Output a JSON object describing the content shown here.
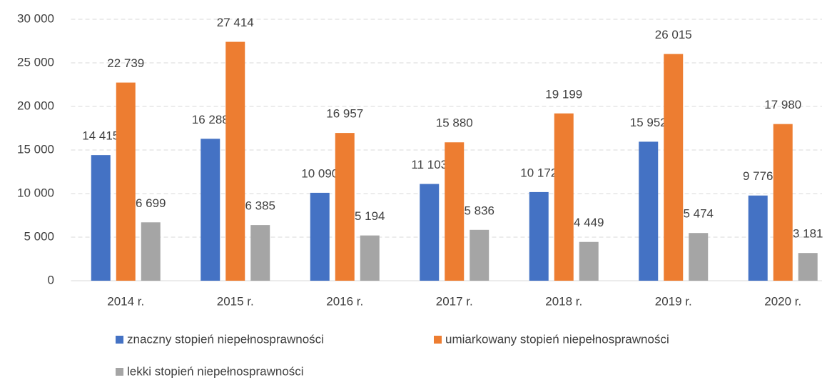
{
  "chart_data": {
    "type": "bar",
    "categories": [
      "2014 r.",
      "2015 r.",
      "2016 r.",
      "2017 r.",
      "2018 r.",
      "2019 r.",
      "2020 r."
    ],
    "series": [
      {
        "name": "znaczny stopień niepełnosprawności",
        "color": "#4472c4",
        "values": [
          14415,
          16288,
          10090,
          11103,
          10172,
          15952,
          9776
        ],
        "value_labels": [
          "14 415",
          "16 288",
          "10 090",
          "11 103",
          "10 172",
          "15 952",
          "9 776"
        ]
      },
      {
        "name": "umiarkowany stopień niepełnosprawności",
        "color": "#ed7d31",
        "values": [
          22739,
          27414,
          16957,
          15880,
          19199,
          26015,
          17980
        ],
        "value_labels": [
          "22 739",
          "27 414",
          "16 957",
          "15 880",
          "19 199",
          "26 015",
          "17 980"
        ]
      },
      {
        "name": "lekki stopień niepełnosprawności",
        "color": "#a5a5a5",
        "values": [
          6699,
          6385,
          5194,
          5836,
          4449,
          5474,
          3181
        ],
        "value_labels": [
          "6 699",
          "6 385",
          "5 194",
          "5 836",
          "4 449",
          "5 474",
          "3 181"
        ]
      }
    ],
    "ylim": [
      0,
      30000
    ],
    "yticks": [
      0,
      {
        "value": 5000,
        "label": "5 000"
      },
      {
        "value": 10000,
        "label": "10 000"
      },
      {
        "value": 15000,
        "label": "15 000"
      },
      {
        "value": 20000,
        "label": "20 000"
      },
      {
        "value": 25000,
        "label": "25 000"
      },
      {
        "value": 30000,
        "label": "30 000"
      }
    ],
    "grid": true
  }
}
